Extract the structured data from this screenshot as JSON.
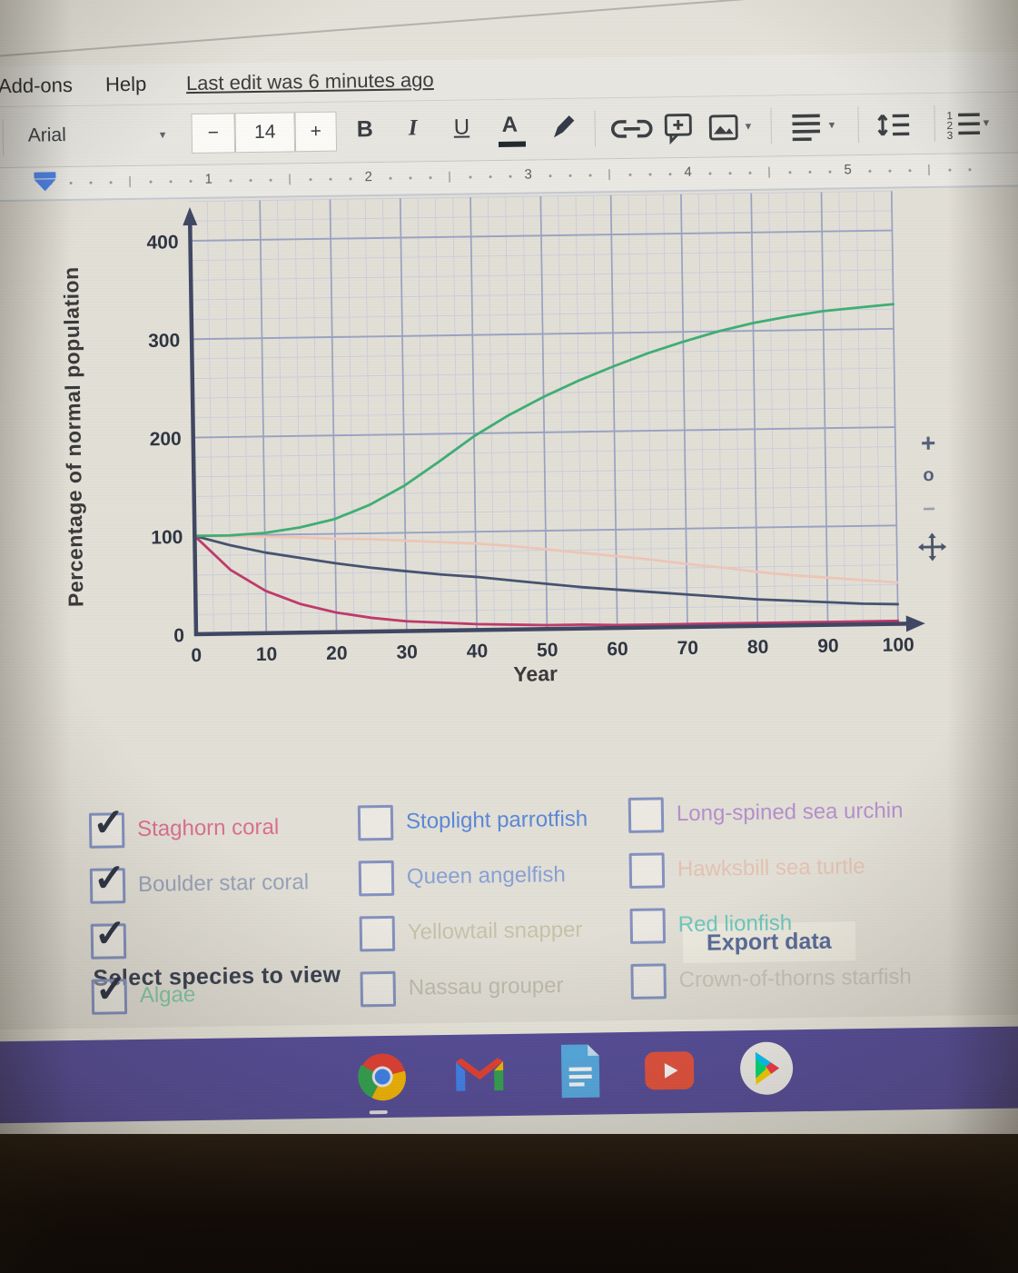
{
  "menu": {
    "items": [
      "Add-ons",
      "Help"
    ],
    "last_edit": "Last edit was 6 minutes ago"
  },
  "toolbar": {
    "font_name": "Arial",
    "decrease": "−",
    "font_size": "14",
    "increase": "+",
    "bold": "B",
    "italic": "I",
    "underline": "U",
    "text_color": "A"
  },
  "ruler": {
    "marks": [
      "1",
      "2",
      "3",
      "4",
      "5"
    ]
  },
  "chart_data": {
    "type": "line",
    "title": "",
    "xlabel": "Year",
    "ylabel": "Percentage of normal population",
    "xlim": [
      0,
      100
    ],
    "ylim": [
      0,
      400
    ],
    "xticks": [
      0,
      10,
      20,
      30,
      40,
      50,
      60,
      70,
      80,
      90,
      100
    ],
    "yticks": [
      0,
      100,
      200,
      300,
      400
    ],
    "grid": {
      "x_major_step": 10,
      "x_minor_step": 2.5,
      "y_major_step": 100,
      "y_minor_step": 20,
      "y_top": 440
    },
    "legend": "none",
    "x": [
      0,
      5,
      10,
      15,
      20,
      25,
      30,
      35,
      40,
      45,
      50,
      55,
      60,
      65,
      70,
      75,
      80,
      85,
      90,
      95,
      100
    ],
    "series": [
      {
        "name": "",
        "color": "#edc6b8",
        "values": [
          100,
          99,
          98,
          97,
          95,
          94,
          92,
          90,
          88,
          85,
          81,
          77,
          73,
          69,
          64,
          60,
          55,
          51,
          48,
          45,
          42
        ]
      },
      {
        "name": "Boulder star coral",
        "color": "#46536f",
        "values": [
          100,
          90,
          82,
          76,
          70,
          65,
          61,
          57,
          54,
          50,
          46,
          42,
          39,
          36,
          33,
          30,
          27,
          25,
          23,
          21,
          20
        ]
      },
      {
        "name": "Staghorn coral",
        "color": "#bf3a6a",
        "values": [
          100,
          65,
          43,
          29,
          20,
          14,
          10,
          8,
          6,
          5,
          4,
          4,
          3,
          3,
          3,
          3,
          3,
          3,
          3,
          3,
          3
        ]
      },
      {
        "name": "Algae",
        "color": "#3fae74",
        "values": [
          100,
          100,
          102,
          107,
          115,
          129,
          148,
          172,
          197,
          218,
          236,
          252,
          266,
          279,
          290,
          300,
          308,
          314,
          319,
          322,
          325
        ]
      }
    ]
  },
  "chart_controls": {
    "zoom_in": "+",
    "reset": "o",
    "zoom_out": "−"
  },
  "export_label": "Export data",
  "species": {
    "heading": "Select species to view",
    "columns": [
      [
        {
          "label": "Staghorn coral",
          "checked": true,
          "color": "#d96f8e"
        },
        {
          "label": "Boulder star coral",
          "checked": true,
          "color": "#97a2b8"
        },
        {
          "label": "",
          "checked": true,
          "color": "#d8d5c9"
        },
        {
          "label": "Algae",
          "checked": true,
          "color": "#84c9a4"
        }
      ],
      [
        {
          "label": "Stoplight parrotfish",
          "checked": false,
          "color": "#5b87d6"
        },
        {
          "label": "Queen angelfish",
          "checked": false,
          "color": "#87a0d4"
        },
        {
          "label": "Yellowtail snapper",
          "checked": false,
          "color": "#c6c2a9"
        },
        {
          "label": "Nassau grouper",
          "checked": false,
          "color": "#bfbdae"
        }
      ],
      [
        {
          "label": "Long-spined sea urchin",
          "checked": false,
          "color": "#b48fcb"
        },
        {
          "label": "Hawksbill sea turtle",
          "checked": false,
          "color": "#e3c2b2"
        },
        {
          "label": "Red lionfish",
          "checked": false,
          "color": "#6ec7bd"
        },
        {
          "label": "Crown-of-thorns starfish",
          "checked": false,
          "color": "#c9c4b8"
        }
      ]
    ]
  },
  "taskbar": {
    "icons": [
      "chrome",
      "gmail",
      "google-docs",
      "youtube",
      "google-play"
    ]
  }
}
